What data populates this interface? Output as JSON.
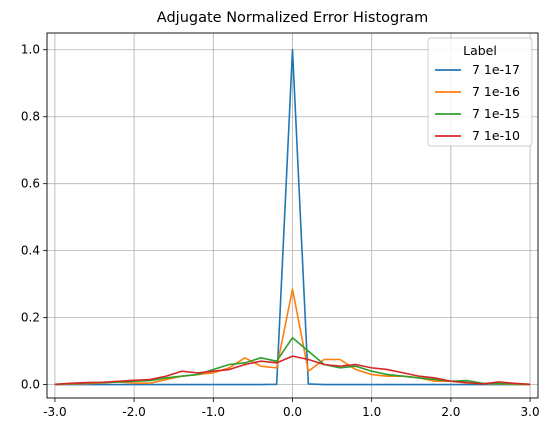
{
  "chart_data": {
    "type": "line",
    "title": "Adjugate Normalized Error Histogram",
    "xlabel": "",
    "ylabel": "",
    "xlim": [
      -3.1,
      3.1
    ],
    "ylim": [
      -0.04,
      1.05
    ],
    "grid": true,
    "legend": {
      "title": "Label",
      "placement": "top-right"
    },
    "x_ticks": [
      {
        "value": -3.0,
        "label": "-3.0"
      },
      {
        "value": -2.0,
        "label": "-2.0"
      },
      {
        "value": -1.0,
        "label": "-1.0"
      },
      {
        "value": 0.0,
        "label": "0.0"
      },
      {
        "value": 1.0,
        "label": "1.0"
      },
      {
        "value": 2.0,
        "label": "2.0"
      },
      {
        "value": 3.0,
        "label": "3.0"
      }
    ],
    "y_ticks": [
      {
        "value": 0.0,
        "label": "0.0"
      },
      {
        "value": 0.2,
        "label": "0.2"
      },
      {
        "value": 0.4,
        "label": "0.4"
      },
      {
        "value": 0.6,
        "label": "0.6"
      },
      {
        "value": 0.8,
        "label": "0.8"
      },
      {
        "value": 1.0,
        "label": "1.0"
      }
    ],
    "x": [
      -3.0,
      -2.8,
      -2.6,
      -2.4,
      -2.2,
      -2.0,
      -1.8,
      -1.6,
      -1.4,
      -1.2,
      -1.0,
      -0.8,
      -0.6,
      -0.4,
      -0.2,
      0.0,
      0.2,
      0.4,
      0.6,
      0.8,
      1.0,
      1.2,
      1.4,
      1.6,
      1.8,
      2.0,
      2.2,
      2.4,
      2.6,
      2.8,
      3.0
    ],
    "series": [
      {
        "name": "7 1e-17",
        "color": "#1f77b4",
        "values": [
          0,
          0,
          0,
          0,
          0,
          0,
          0,
          0,
          0,
          0,
          0,
          0,
          0,
          0,
          0.001,
          1.0,
          0.002,
          0,
          0,
          0,
          0,
          0,
          0,
          0,
          0,
          0,
          0,
          0,
          0,
          0,
          0
        ]
      },
      {
        "name": "7 1e-16",
        "color": "#ff7f0e",
        "values": [
          0,
          0.002,
          0.003,
          0.005,
          0.008,
          0.005,
          0.004,
          0.015,
          0.025,
          0.03,
          0.035,
          0.05,
          0.08,
          0.055,
          0.05,
          0.285,
          0.04,
          0.075,
          0.075,
          0.045,
          0.03,
          0.025,
          0.025,
          0.02,
          0.01,
          0.01,
          0.005,
          0.003,
          0.002,
          0.001,
          0
        ]
      },
      {
        "name": "7 1e-15",
        "color": "#2ca02c",
        "values": [
          0,
          0.003,
          0.005,
          0.006,
          0.008,
          0.01,
          0.012,
          0.02,
          0.025,
          0.03,
          0.045,
          0.06,
          0.065,
          0.08,
          0.07,
          0.14,
          0.1,
          0.06,
          0.05,
          0.055,
          0.04,
          0.03,
          0.025,
          0.02,
          0.015,
          0.01,
          0.012,
          0.004,
          0.003,
          0.002,
          0.001
        ]
      },
      {
        "name": "7 1e-10",
        "color": "#d62728",
        "values": [
          0.001,
          0.004,
          0.006,
          0.007,
          0.01,
          0.013,
          0.015,
          0.025,
          0.04,
          0.035,
          0.04,
          0.045,
          0.06,
          0.07,
          0.065,
          0.085,
          0.075,
          0.06,
          0.055,
          0.06,
          0.05,
          0.045,
          0.035,
          0.025,
          0.02,
          0.01,
          0.006,
          0.002,
          0.008,
          0.004,
          0.001
        ]
      }
    ]
  }
}
